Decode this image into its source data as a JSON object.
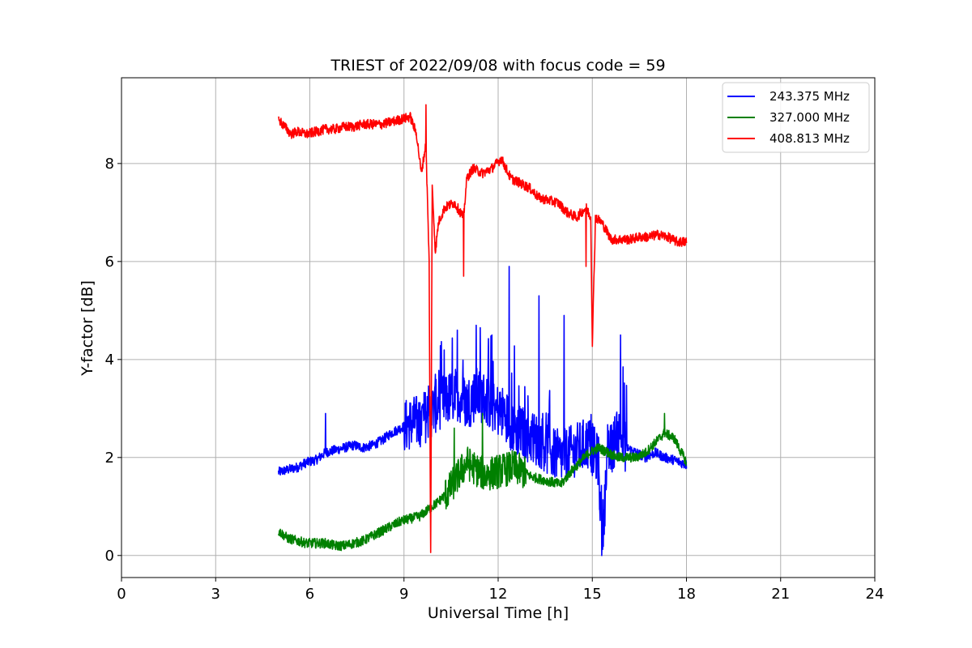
{
  "chart_data": {
    "type": "line",
    "title": "TRIEST of 2022/09/08 with focus code = 59",
    "xlabel": "Universal Time [h]",
    "ylabel": "Y-factor [dB]",
    "xlim": [
      0,
      24
    ],
    "ylim": [
      -0.45,
      9.75
    ],
    "xticks": [
      0,
      3,
      6,
      9,
      12,
      15,
      18,
      21,
      24
    ],
    "yticks": [
      0,
      2,
      4,
      6,
      8
    ],
    "grid": true,
    "legend_position": "top-right",
    "series": [
      {
        "name": "243.375 MHz",
        "color": "#0000ff",
        "x": [
          5.0,
          5.3,
          5.6,
          5.9,
          6.2,
          6.5,
          6.8,
          7.1,
          7.4,
          7.7,
          8.0,
          8.3,
          8.6,
          8.9,
          9.2,
          9.5,
          9.8,
          10.1,
          10.4,
          10.7,
          11.0,
          11.3,
          11.6,
          11.9,
          12.2,
          12.5,
          12.8,
          13.1,
          13.4,
          13.7,
          14.0,
          14.3,
          14.6,
          14.9,
          15.2,
          15.3,
          15.5,
          15.8,
          16.1,
          16.4,
          16.7,
          17.0,
          17.3,
          17.6,
          18.0
        ],
        "y": [
          1.7,
          1.75,
          1.8,
          1.9,
          1.95,
          2.1,
          2.15,
          2.2,
          2.25,
          2.2,
          2.25,
          2.35,
          2.5,
          2.6,
          2.7,
          2.75,
          2.9,
          3.1,
          3.2,
          3.3,
          3.1,
          3.3,
          3.2,
          3.0,
          2.9,
          2.6,
          2.5,
          2.4,
          2.3,
          2.1,
          2.0,
          2.1,
          2.2,
          2.3,
          1.9,
          0.3,
          2.0,
          2.5,
          2.2,
          2.1,
          2.0,
          2.1,
          2.0,
          1.95,
          1.85
        ],
        "peaks": [
          [
            6.5,
            2.9
          ],
          [
            10.0,
            3.7
          ],
          [
            10.7,
            4.6
          ],
          [
            11.3,
            4.7
          ],
          [
            11.8,
            4.5
          ],
          [
            12.35,
            5.9
          ],
          [
            13.3,
            5.3
          ],
          [
            14.1,
            4.9
          ],
          [
            15.3,
            0.0
          ],
          [
            15.9,
            4.5
          ]
        ]
      },
      {
        "name": "327.000 MHz",
        "color": "#008000",
        "x": [
          5.0,
          5.3,
          5.6,
          5.9,
          6.2,
          6.5,
          6.8,
          7.1,
          7.4,
          7.7,
          8.0,
          8.3,
          8.6,
          8.9,
          9.2,
          9.5,
          9.8,
          10.1,
          10.4,
          10.7,
          11.0,
          11.3,
          11.6,
          11.9,
          12.2,
          12.5,
          12.8,
          13.1,
          13.4,
          13.7,
          14.0,
          14.3,
          14.6,
          14.9,
          15.2,
          15.5,
          15.8,
          16.1,
          16.4,
          16.7,
          17.0,
          17.3,
          17.6,
          18.0
        ],
        "y": [
          0.5,
          0.35,
          0.3,
          0.25,
          0.25,
          0.25,
          0.2,
          0.2,
          0.25,
          0.3,
          0.4,
          0.5,
          0.6,
          0.7,
          0.75,
          0.8,
          0.95,
          1.1,
          1.3,
          1.6,
          1.9,
          1.75,
          1.65,
          1.7,
          1.75,
          1.8,
          1.7,
          1.6,
          1.55,
          1.5,
          1.45,
          1.7,
          1.9,
          2.1,
          2.2,
          2.1,
          2.0,
          2.0,
          2.0,
          2.1,
          2.3,
          2.5,
          2.4,
          1.9
        ],
        "peaks": [
          [
            10.6,
            2.6
          ],
          [
            11.5,
            2.9
          ],
          [
            17.3,
            2.9
          ]
        ]
      },
      {
        "name": "408.813 MHz",
        "color": "#ff0000",
        "x": [
          5.0,
          5.2,
          5.4,
          5.6,
          5.9,
          6.2,
          6.5,
          6.8,
          7.1,
          7.4,
          7.7,
          8.0,
          8.3,
          8.6,
          8.9,
          9.2,
          9.4,
          9.55,
          9.7,
          9.8,
          9.85,
          9.9,
          10.0,
          10.1,
          10.3,
          10.6,
          10.8,
          10.9,
          11.0,
          11.2,
          11.5,
          11.8,
          12.1,
          12.4,
          12.7,
          13.0,
          13.3,
          13.6,
          13.9,
          14.2,
          14.5,
          14.8,
          14.95,
          15.0,
          15.1,
          15.3,
          15.6,
          15.9,
          16.2,
          16.5,
          16.8,
          17.1,
          17.4,
          17.7,
          18.0
        ],
        "y": [
          8.9,
          8.75,
          8.6,
          8.65,
          8.6,
          8.65,
          8.7,
          8.7,
          8.75,
          8.75,
          8.8,
          8.8,
          8.8,
          8.85,
          8.9,
          8.95,
          8.6,
          7.8,
          8.4,
          6.0,
          0.0,
          7.5,
          6.2,
          6.8,
          7.1,
          7.2,
          7.0,
          6.9,
          7.7,
          7.9,
          7.8,
          7.9,
          8.1,
          7.7,
          7.6,
          7.5,
          7.3,
          7.25,
          7.2,
          7.0,
          6.9,
          7.1,
          6.9,
          4.3,
          6.9,
          6.8,
          6.45,
          6.45,
          6.45,
          6.5,
          6.5,
          6.55,
          6.5,
          6.4,
          6.4
        ],
        "peaks": [
          [
            9.7,
            9.2
          ],
          [
            10.9,
            5.7
          ],
          [
            14.8,
            5.9
          ]
        ]
      }
    ]
  }
}
